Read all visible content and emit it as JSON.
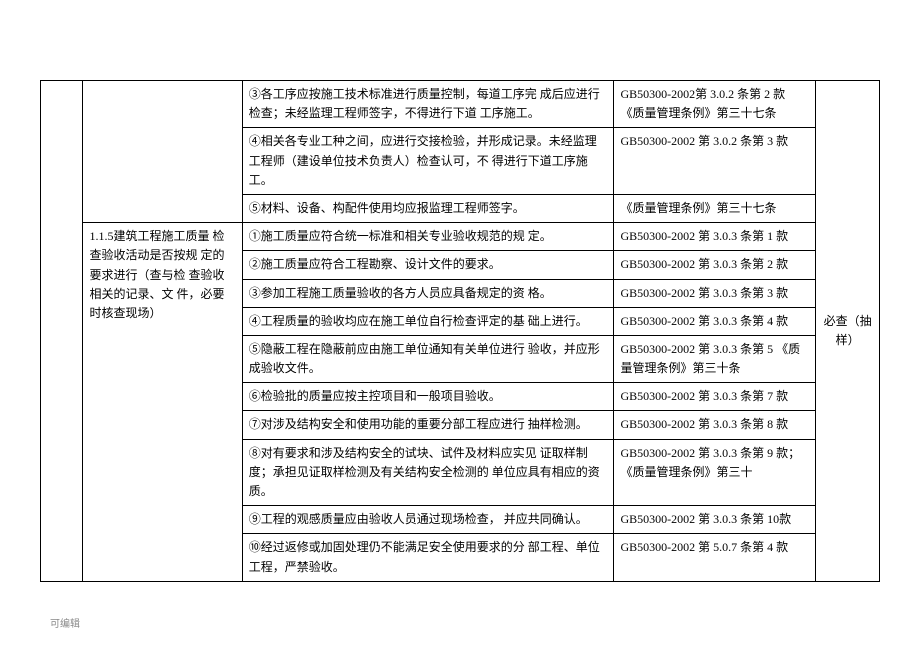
{
  "table": {
    "rows": [
      {
        "detail": "③各工序应按施工技术标准进行质量控制，每道工序完 成后应进行检查；未经监理工程师签字，不得进行下道 工序施工。",
        "ref": "GB50300-2002第 3.0.2 条第 2 款  《质量管理条例》第三十七条"
      },
      {
        "detail": "④相关各专业工种之间，应进行交接检验，并形成记录。未经监理工程师（建设单位技术负责人）检查认可，不 得进行下道工序施工。",
        "ref": "GB50300-2002 第 3.0.2 条第 3 款"
      },
      {
        "detail": "⑤材料、设备、构配件使用均应报监理工程师签字。",
        "ref": "《质量管理条例》第三十七条"
      },
      {
        "detail": "①施工质量应符合统一标准和相关专业验收规范的规 定。",
        "ref": "GB50300-2002 第 3.0.3 条第 1 款"
      },
      {
        "detail": "②施工质量应符合工程勘察、设计文件的要求。",
        "ref": "GB50300-2002 第 3.0.3 条第 2 款"
      },
      {
        "detail": "③参加工程施工质量验收的各方人员应具备规定的资 格。",
        "ref": "GB50300-2002 第 3.0.3 条第 3 款"
      },
      {
        "detail": "④工程质量的验收均应在施工单位自行检查评定的基 础上进行。",
        "ref": "GB50300-2002 第 3.0.3 条第 4 款"
      },
      {
        "detail": "⑤隐蔽工程在隐蔽前应由施工单位通知有关单位进行 验收，并应形成验收文件。",
        "ref": "GB50300-2002 第 3.0.3 条第 5 《质量管理条例》第三十条"
      },
      {
        "detail": "⑥检验批的质量应按主控项目和一般项目验收。",
        "ref": "GB50300-2002 第 3.0.3 条第 7 款"
      },
      {
        "detail": "⑦对涉及结构安全和使用功能的重要分部工程应进行 抽样检测。",
        "ref": "GB50300-2002 第 3.0.3 条第 8 款"
      },
      {
        "detail": "⑧对有要求和涉及结构安全的试块、试件及材料应实见 证取样制度；承担见证取样检测及有关结构安全检测的 单位应具有相应的资质。",
        "ref": "GB50300-2002 第 3.0.3 条第 9 款；《质量管理条例》第三十"
      },
      {
        "detail": "⑨工程的观感质量应由验收人员通过现场检查， 并应共同确认。",
        "ref": "GB50300-2002 第 3.0.3 条第 10款"
      },
      {
        "detail": "⑩经过返修或加固处理仍不能满足安全使用要求的分 部工程、单位工程，严禁验收。",
        "ref": "GB50300-2002 第 5.0.7 条第 4 款"
      }
    ],
    "section_title": "1.1.5建筑工程施工质量 检查验收活动是否按规 定的要求进行（查与检 查验收相关的记录、文 件，必要时核查现场）",
    "col5_label": "必查（抽样）"
  },
  "footer": "可编辑"
}
